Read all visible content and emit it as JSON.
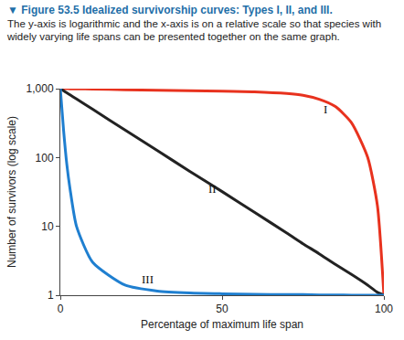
{
  "chart_data": {
    "type": "line",
    "title": "▼ Figure 53.5 Idealized survivorship curves: Types I, II, and III.",
    "subtitle": "The y-axis is logarithmic and the x-axis is on a relative scale so that species with widely varying life spans can be presented together on the same graph.",
    "x_label": "Percentage of maximum life span",
    "y_label": "Number of survivors (log scale)",
    "log": "y",
    "grid": false,
    "xlim": [
      0,
      100
    ],
    "ylim": [
      1,
      1000
    ],
    "xticks": [
      0,
      50,
      100
    ],
    "yticks": [
      1,
      10,
      100,
      {
        "value": 1000,
        "label": "1,000"
      }
    ],
    "x": [
      0,
      1,
      2,
      3,
      5,
      10,
      20,
      30,
      40,
      50,
      60,
      70,
      75,
      80,
      85,
      90,
      95,
      98,
      100
    ],
    "series": [
      {
        "name": "I",
        "color": "#e8321e",
        "values": [
          1000,
          1000,
          998,
          996,
          994,
          985,
          965,
          945,
          930,
          920,
          900,
          850,
          800,
          700,
          550,
          320,
          100,
          20,
          1
        ]
      },
      {
        "name": "II",
        "color": "#222222",
        "values": [
          1000,
          933,
          871,
          813,
          708,
          501,
          251,
          126,
          63,
          32,
          16,
          8,
          5.6,
          4,
          2.8,
          2,
          1.4,
          1.1,
          1
        ]
      },
      {
        "name": "III",
        "color": "#1f7fd0",
        "values": [
          1000,
          250,
          80,
          35,
          10,
          3,
          1.4,
          1.15,
          1.08,
          1.05,
          1.03,
          1.02,
          1.02,
          1.01,
          1.01,
          1,
          1,
          1,
          1
        ]
      }
    ],
    "annotations": [
      {
        "text": "I",
        "x": 82,
        "y": 500
      },
      {
        "text": "II",
        "x": 47,
        "y": 35
      },
      {
        "text": "III",
        "x": 27,
        "y": 1.7
      }
    ]
  }
}
